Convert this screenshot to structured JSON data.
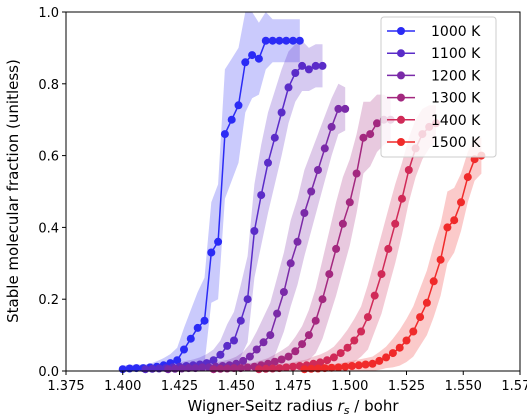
{
  "chart_data": {
    "type": "line",
    "xlabel_prefix": "Wigner-Seitz radius ",
    "xlabel_var": "r",
    "xlabel_sub": "s",
    "xlabel_suffix": " / bohr",
    "ylabel": "Stable molecular fraction (unitless)",
    "xlim": [
      1.375,
      1.575
    ],
    "ylim": [
      0.0,
      1.0
    ],
    "xticks": [
      "1.375",
      "1.400",
      "1.425",
      "1.450",
      "1.475",
      "1.500",
      "1.525",
      "1.550",
      "1.575"
    ],
    "yticks": [
      "0.0",
      "0.2",
      "0.4",
      "0.6",
      "0.8",
      "1.0"
    ],
    "grid": false,
    "legend_position": "top-right",
    "series": [
      {
        "name": "1000 K",
        "color": "#2b2bf5",
        "x": [
          1.4,
          1.403,
          1.406,
          1.409,
          1.412,
          1.415,
          1.418,
          1.421,
          1.424,
          1.427,
          1.43,
          1.433,
          1.436,
          1.439,
          1.442,
          1.445,
          1.448,
          1.451,
          1.454,
          1.457,
          1.46,
          1.463,
          1.466,
          1.469,
          1.472,
          1.475,
          1.478
        ],
        "y": [
          0.005,
          0.007,
          0.008,
          0.008,
          0.01,
          0.012,
          0.016,
          0.022,
          0.03,
          0.06,
          0.09,
          0.12,
          0.14,
          0.33,
          0.36,
          0.66,
          0.7,
          0.74,
          0.86,
          0.88,
          0.87,
          0.92,
          0.92,
          0.92,
          0.92,
          0.92,
          0.92
        ],
        "band": [
          0.01,
          0.01,
          0.01,
          0.01,
          0.01,
          0.015,
          0.02,
          0.025,
          0.035,
          0.06,
          0.08,
          0.1,
          0.12,
          0.14,
          0.16,
          0.18,
          0.17,
          0.16,
          0.14,
          0.12,
          0.1,
          0.08,
          0.06,
          0.06,
          0.06,
          0.06,
          0.06
        ]
      },
      {
        "name": "1100 K",
        "color": "#5a2cc8",
        "x": [
          1.41,
          1.413,
          1.416,
          1.419,
          1.422,
          1.425,
          1.428,
          1.431,
          1.434,
          1.437,
          1.44,
          1.443,
          1.446,
          1.449,
          1.452,
          1.455,
          1.458,
          1.461,
          1.464,
          1.467,
          1.47,
          1.473,
          1.476,
          1.479,
          1.482,
          1.485,
          1.488
        ],
        "y": [
          0.005,
          0.006,
          0.007,
          0.008,
          0.01,
          0.012,
          0.014,
          0.016,
          0.018,
          0.022,
          0.03,
          0.045,
          0.07,
          0.085,
          0.14,
          0.2,
          0.39,
          0.49,
          0.58,
          0.65,
          0.72,
          0.79,
          0.83,
          0.85,
          0.84,
          0.85,
          0.85
        ],
        "band": [
          0.01,
          0.01,
          0.01,
          0.01,
          0.01,
          0.012,
          0.014,
          0.016,
          0.02,
          0.025,
          0.03,
          0.04,
          0.06,
          0.08,
          0.1,
          0.12,
          0.13,
          0.14,
          0.14,
          0.13,
          0.12,
          0.1,
          0.08,
          0.07,
          0.06,
          0.06,
          0.06
        ]
      },
      {
        "name": "1200 K",
        "color": "#7a2aa8",
        "x": [
          1.42,
          1.423,
          1.426,
          1.429,
          1.432,
          1.435,
          1.438,
          1.441,
          1.444,
          1.447,
          1.45,
          1.453,
          1.456,
          1.459,
          1.462,
          1.465,
          1.468,
          1.471,
          1.474,
          1.477,
          1.48,
          1.483,
          1.486,
          1.489,
          1.492,
          1.495,
          1.498
        ],
        "y": [
          0.005,
          0.006,
          0.007,
          0.008,
          0.008,
          0.01,
          0.01,
          0.012,
          0.014,
          0.016,
          0.02,
          0.028,
          0.04,
          0.06,
          0.08,
          0.1,
          0.16,
          0.22,
          0.3,
          0.36,
          0.44,
          0.5,
          0.56,
          0.62,
          0.68,
          0.73,
          0.73
        ],
        "band": [
          0.01,
          0.01,
          0.01,
          0.01,
          0.01,
          0.01,
          0.01,
          0.012,
          0.014,
          0.016,
          0.02,
          0.025,
          0.035,
          0.05,
          0.07,
          0.09,
          0.1,
          0.11,
          0.12,
          0.12,
          0.12,
          0.11,
          0.1,
          0.09,
          0.08,
          0.07,
          0.06
        ]
      },
      {
        "name": "1300 K",
        "color": "#a3287f",
        "x": [
          1.44,
          1.443,
          1.446,
          1.449,
          1.452,
          1.455,
          1.458,
          1.461,
          1.464,
          1.467,
          1.47,
          1.473,
          1.476,
          1.479,
          1.482,
          1.485,
          1.488,
          1.491,
          1.494,
          1.497,
          1.5,
          1.503,
          1.506,
          1.509,
          1.512,
          1.515,
          1.518
        ],
        "y": [
          0.005,
          0.006,
          0.007,
          0.008,
          0.008,
          0.01,
          0.012,
          0.016,
          0.02,
          0.026,
          0.032,
          0.04,
          0.055,
          0.075,
          0.1,
          0.14,
          0.2,
          0.27,
          0.34,
          0.41,
          0.47,
          0.55,
          0.65,
          0.66,
          0.69,
          0.7,
          0.7
        ],
        "band": [
          0.01,
          0.01,
          0.01,
          0.01,
          0.01,
          0.01,
          0.012,
          0.014,
          0.016,
          0.02,
          0.025,
          0.03,
          0.04,
          0.05,
          0.07,
          0.09,
          0.11,
          0.12,
          0.13,
          0.13,
          0.12,
          0.11,
          0.1,
          0.09,
          0.08,
          0.07,
          0.06
        ]
      },
      {
        "name": "1400 K",
        "color": "#d02a58",
        "x": [
          1.46,
          1.463,
          1.466,
          1.469,
          1.472,
          1.475,
          1.478,
          1.481,
          1.484,
          1.487,
          1.49,
          1.493,
          1.496,
          1.499,
          1.502,
          1.505,
          1.508,
          1.511,
          1.514,
          1.517,
          1.52,
          1.523,
          1.526,
          1.529,
          1.532,
          1.535,
          1.538
        ],
        "y": [
          0.005,
          0.006,
          0.007,
          0.008,
          0.01,
          0.012,
          0.014,
          0.016,
          0.02,
          0.024,
          0.03,
          0.038,
          0.05,
          0.065,
          0.085,
          0.11,
          0.15,
          0.21,
          0.27,
          0.34,
          0.41,
          0.48,
          0.56,
          0.62,
          0.66,
          0.68,
          0.69
        ],
        "band": [
          0.01,
          0.01,
          0.01,
          0.01,
          0.01,
          0.012,
          0.014,
          0.016,
          0.02,
          0.022,
          0.025,
          0.03,
          0.04,
          0.05,
          0.06,
          0.07,
          0.09,
          0.1,
          0.11,
          0.11,
          0.11,
          0.1,
          0.09,
          0.08,
          0.07,
          0.06,
          0.05
        ]
      },
      {
        "name": "1500 K",
        "color": "#f02a2a",
        "x": [
          1.48,
          1.483,
          1.486,
          1.489,
          1.492,
          1.495,
          1.498,
          1.501,
          1.504,
          1.507,
          1.51,
          1.513,
          1.516,
          1.519,
          1.522,
          1.525,
          1.528,
          1.531,
          1.534,
          1.537,
          1.54,
          1.543,
          1.546,
          1.549,
          1.552,
          1.555,
          1.558
        ],
        "y": [
          0.005,
          0.006,
          0.007,
          0.008,
          0.009,
          0.01,
          0.012,
          0.014,
          0.016,
          0.018,
          0.02,
          0.028,
          0.038,
          0.05,
          0.065,
          0.085,
          0.11,
          0.15,
          0.19,
          0.25,
          0.31,
          0.4,
          0.42,
          0.47,
          0.54,
          0.59,
          0.6
        ],
        "band": [
          0.01,
          0.01,
          0.01,
          0.01,
          0.01,
          0.01,
          0.012,
          0.014,
          0.016,
          0.018,
          0.02,
          0.025,
          0.03,
          0.04,
          0.05,
          0.06,
          0.07,
          0.08,
          0.09,
          0.1,
          0.1,
          0.1,
          0.09,
          0.08,
          0.07,
          0.06,
          0.05
        ]
      }
    ]
  }
}
